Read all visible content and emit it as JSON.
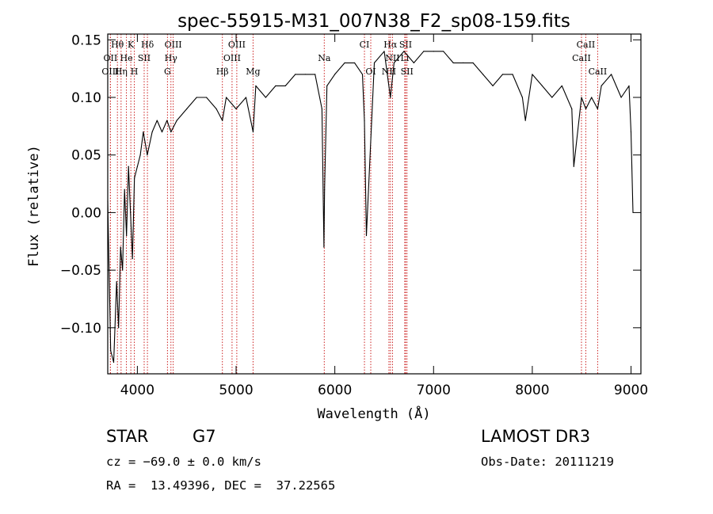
{
  "chart_data": {
    "type": "line",
    "title": "spec-55915-M31_007N38_F2_sp08-159.fits",
    "xlabel": "Wavelength (Å)",
    "ylabel": "Flux (relative)",
    "xlim": [
      3700,
      9100
    ],
    "ylim": [
      -0.14,
      0.155
    ],
    "xticks": [
      4000,
      5000,
      6000,
      7000,
      8000,
      9000
    ],
    "xtick_labels": [
      "4000",
      "5000",
      "6000",
      "7000",
      "8000",
      "9000"
    ],
    "yticks": [
      -0.1,
      -0.05,
      0.0,
      0.05,
      0.1,
      0.15
    ],
    "ytick_labels": [
      "−0.10",
      "−0.05",
      "0.00",
      "0.05",
      "0.10",
      "0.15"
    ],
    "series": [
      {
        "name": "flux",
        "x": [
          3700,
          3730,
          3760,
          3790,
          3810,
          3830,
          3850,
          3870,
          3890,
          3910,
          3930,
          3950,
          3970,
          4000,
          4030,
          4060,
          4100,
          4150,
          4200,
          4250,
          4300,
          4340,
          4400,
          4500,
          4600,
          4700,
          4800,
          4861,
          4900,
          5000,
          5100,
          5172,
          5200,
          5300,
          5400,
          5500,
          5600,
          5700,
          5800,
          5870,
          5890,
          5896,
          5920,
          6000,
          6100,
          6200,
          6280,
          6300,
          6320,
          6400,
          6500,
          6563,
          6600,
          6700,
          6800,
          6900,
          7000,
          7100,
          7200,
          7300,
          7400,
          7500,
          7600,
          7700,
          7800,
          7900,
          7930,
          8000,
          8100,
          8200,
          8300,
          8400,
          8420,
          8498,
          8542,
          8600,
          8662,
          8700,
          8800,
          8900,
          8980,
          9000,
          9020
        ],
        "y": [
          0.01,
          -0.12,
          -0.13,
          -0.06,
          -0.1,
          -0.03,
          -0.05,
          0.02,
          -0.02,
          0.04,
          0.0,
          -0.04,
          0.03,
          0.04,
          0.05,
          0.07,
          0.05,
          0.07,
          0.08,
          0.07,
          0.08,
          0.07,
          0.08,
          0.09,
          0.1,
          0.1,
          0.09,
          0.08,
          0.1,
          0.09,
          0.1,
          0.07,
          0.11,
          0.1,
          0.11,
          0.11,
          0.12,
          0.12,
          0.12,
          0.09,
          -0.03,
          0.02,
          0.11,
          0.12,
          0.13,
          0.13,
          0.12,
          0.08,
          -0.02,
          0.13,
          0.14,
          0.1,
          0.13,
          0.14,
          0.13,
          0.14,
          0.14,
          0.14,
          0.13,
          0.13,
          0.13,
          0.12,
          0.11,
          0.12,
          0.12,
          0.1,
          0.08,
          0.12,
          0.11,
          0.1,
          0.11,
          0.09,
          0.04,
          0.1,
          0.09,
          0.1,
          0.09,
          0.11,
          0.12,
          0.1,
          0.11,
          0.07,
          0.0
        ]
      }
    ],
    "line_markers": [
      {
        "label": "Hθ",
        "x": 3798,
        "row": 0
      },
      {
        "label": "K",
        "x": 3934,
        "row": 0
      },
      {
        "label": "Hδ",
        "x": 4102,
        "row": 0
      },
      {
        "label": "OIII",
        "x": 4363,
        "row": 0
      },
      {
        "label": "OIII",
        "x": 5007,
        "row": 0
      },
      {
        "label": "CI",
        "x": 6300,
        "row": 0
      },
      {
        "label": "Hα",
        "x": 6563,
        "row": 0
      },
      {
        "label": "SII",
        "x": 6717,
        "row": 0
      },
      {
        "label": "CaII",
        "x": 8542,
        "row": 0
      },
      {
        "label": "OII",
        "x": 3727,
        "row": 1
      },
      {
        "label": "He",
        "x": 3889,
        "row": 1
      },
      {
        "label": "SII",
        "x": 4069,
        "row": 1
      },
      {
        "label": "Hγ",
        "x": 4340,
        "row": 1
      },
      {
        "label": "OIII",
        "x": 4959,
        "row": 1
      },
      {
        "label": "Na",
        "x": 5893,
        "row": 1
      },
      {
        "label": "NII",
        "x": 6584,
        "row": 1
      },
      {
        "label": "Li",
        "x": 6708,
        "row": 1
      },
      {
        "label": "CaII",
        "x": 8498,
        "row": 1
      },
      {
        "label": "OIII",
        "x": 3727,
        "row": 2
      },
      {
        "label": "Hη",
        "x": 3835,
        "row": 2
      },
      {
        "label": "H",
        "x": 3969,
        "row": 2
      },
      {
        "label": "G",
        "x": 4305,
        "row": 2
      },
      {
        "label": "Hβ",
        "x": 4861,
        "row": 2
      },
      {
        "label": "Mg",
        "x": 5172,
        "row": 2
      },
      {
        "label": "OI",
        "x": 6364,
        "row": 2
      },
      {
        "label": "NII",
        "x": 6548,
        "row": 2
      },
      {
        "label": "SII",
        "x": 6731,
        "row": 2
      },
      {
        "label": "CaII",
        "x": 8662,
        "row": 2
      }
    ]
  },
  "info": {
    "object_class": "STAR",
    "subclass": "G7",
    "survey": "LAMOST DR3",
    "cz_line": "cz = −69.0 ± 0.0 km/s",
    "obs_date_line": "Obs-Date: 20111219",
    "coords_line": "RA =  13.49396, DEC =  37.22565"
  },
  "colors": {
    "spectrum": "#000000",
    "line_marker": "#cc2222",
    "axis": "#000000",
    "background": "#ffffff"
  }
}
